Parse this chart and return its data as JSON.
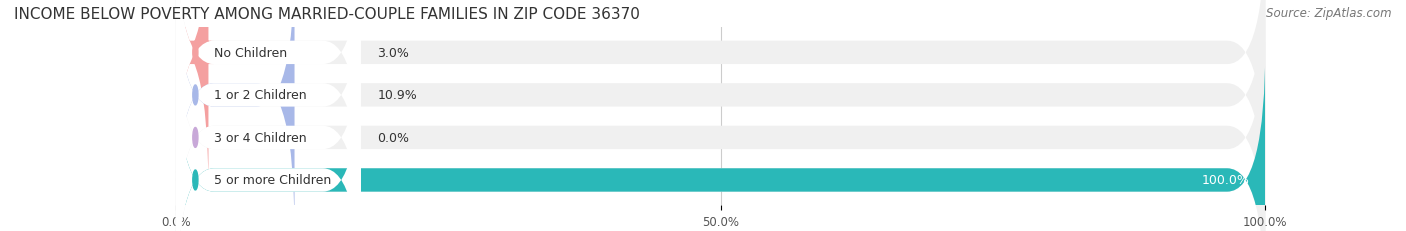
{
  "title": "INCOME BELOW POVERTY AMONG MARRIED-COUPLE FAMILIES IN ZIP CODE 36370",
  "source": "Source: ZipAtlas.com",
  "categories": [
    "No Children",
    "1 or 2 Children",
    "3 or 4 Children",
    "5 or more Children"
  ],
  "values": [
    3.0,
    10.9,
    0.0,
    100.0
  ],
  "bar_colors": [
    "#f4a0a0",
    "#a8b8e8",
    "#c8a8d8",
    "#2ab8b8"
  ],
  "label_colors": [
    "#f4a0a0",
    "#a8b8e8",
    "#c8a8d8",
    "#2ab8b8"
  ],
  "track_color": "#f0f0f0",
  "xlim": [
    0,
    100
  ],
  "xticks": [
    0.0,
    50.0,
    100.0
  ],
  "xtick_labels": [
    "0.0%",
    "50.0%",
    "100.0%"
  ],
  "value_label_inside_threshold": 90,
  "bg_color": "#ffffff",
  "bar_height": 0.55,
  "title_fontsize": 11,
  "source_fontsize": 8.5,
  "label_fontsize": 9,
  "value_fontsize": 9,
  "tick_fontsize": 8.5
}
